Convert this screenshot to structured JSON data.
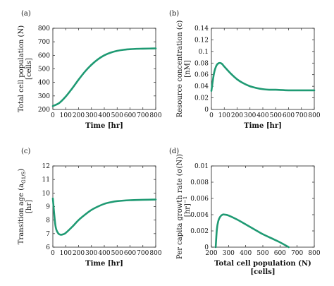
{
  "chart_data": [
    {
      "type": "line",
      "panel_label": "(a)",
      "xlabel": "Time [hr]",
      "ylabel": "Total cell population (N)",
      "ylabel_unit": "[cells]",
      "xlim": [
        0,
        800
      ],
      "ylim": [
        200,
        800
      ],
      "xticks": [
        "0",
        "100",
        "200",
        "300",
        "400",
        "500",
        "600",
        "700",
        "800"
      ],
      "yticks": [
        "200",
        "300",
        "400",
        "500",
        "600",
        "700",
        "800"
      ],
      "color": "#1f9a73",
      "x": [
        0,
        50,
        100,
        150,
        200,
        250,
        300,
        350,
        400,
        450,
        500,
        550,
        600,
        650,
        700,
        750,
        800
      ],
      "y": [
        225,
        248,
        295,
        355,
        420,
        480,
        530,
        570,
        600,
        620,
        633,
        641,
        645,
        648,
        649,
        650,
        651
      ]
    },
    {
      "type": "line",
      "panel_label": "(b)",
      "xlabel": "Time [hr]",
      "ylabel": "Resource concentration (c)",
      "ylabel_unit": "[nM]",
      "xlim": [
        0,
        800
      ],
      "ylim": [
        0,
        0.14
      ],
      "xticks": [
        "0",
        "100",
        "200",
        "300",
        "400",
        "500",
        "600",
        "700",
        "800"
      ],
      "yticks": [
        "0",
        "0.02",
        "0.04",
        "0.06",
        "0.08",
        "0.1",
        "0.12",
        "0.14"
      ],
      "color": "#1f9a73",
      "x": [
        0,
        20,
        40,
        60,
        80,
        100,
        150,
        200,
        250,
        300,
        350,
        400,
        450,
        500,
        600,
        700,
        800
      ],
      "y": [
        0.032,
        0.062,
        0.076,
        0.08,
        0.079,
        0.074,
        0.062,
        0.052,
        0.045,
        0.04,
        0.037,
        0.035,
        0.034,
        0.034,
        0.033,
        0.033,
        0.033
      ]
    },
    {
      "type": "line",
      "panel_label": "(c)",
      "xlabel": "Time [hr]",
      "ylabel": "Transition age (a",
      "ylabel_sub": "G1/S",
      "ylabel_end": ")",
      "ylabel_unit": "[hr]",
      "xlim": [
        0,
        800
      ],
      "ylim": [
        6,
        12
      ],
      "xticks": [
        "0",
        "100",
        "200",
        "300",
        "400",
        "500",
        "600",
        "700",
        "800"
      ],
      "yticks": [
        "6",
        "7",
        "8",
        "9",
        "10",
        "11",
        "12"
      ],
      "color": "#1f9a73",
      "x": [
        0,
        20,
        40,
        60,
        80,
        100,
        150,
        200,
        250,
        300,
        350,
        400,
        450,
        500,
        600,
        700,
        800
      ],
      "y": [
        9.6,
        7.6,
        7.05,
        6.92,
        6.95,
        7.05,
        7.5,
        8.0,
        8.4,
        8.75,
        9.0,
        9.2,
        9.32,
        9.4,
        9.47,
        9.5,
        9.52
      ]
    },
    {
      "type": "line",
      "panel_label": "(d)",
      "xlabel": "Total cell population (N)",
      "xlabel_unit": "[cells]",
      "ylabel": "Per capita growth rate (σ(N))",
      "ylabel_unit": "[hr]",
      "ylabel_unit_sup": "−1",
      "xlim": [
        200,
        800
      ],
      "ylim": [
        0,
        0.01
      ],
      "xticks": [
        "200",
        "300",
        "400",
        "500",
        "600",
        "700",
        "800"
      ],
      "yticks": [
        "0",
        "0.002",
        "0.004",
        "0.006",
        "0.008",
        "0.01"
      ],
      "color": "#1f9a73",
      "x": [
        225,
        232,
        240,
        250,
        265,
        280,
        300,
        350,
        400,
        450,
        500,
        550,
        600,
        651
      ],
      "y": [
        0.0,
        0.0022,
        0.0032,
        0.0037,
        0.004,
        0.004,
        0.0039,
        0.0034,
        0.0028,
        0.0022,
        0.0016,
        0.0011,
        0.0006,
        0.0
      ]
    }
  ]
}
